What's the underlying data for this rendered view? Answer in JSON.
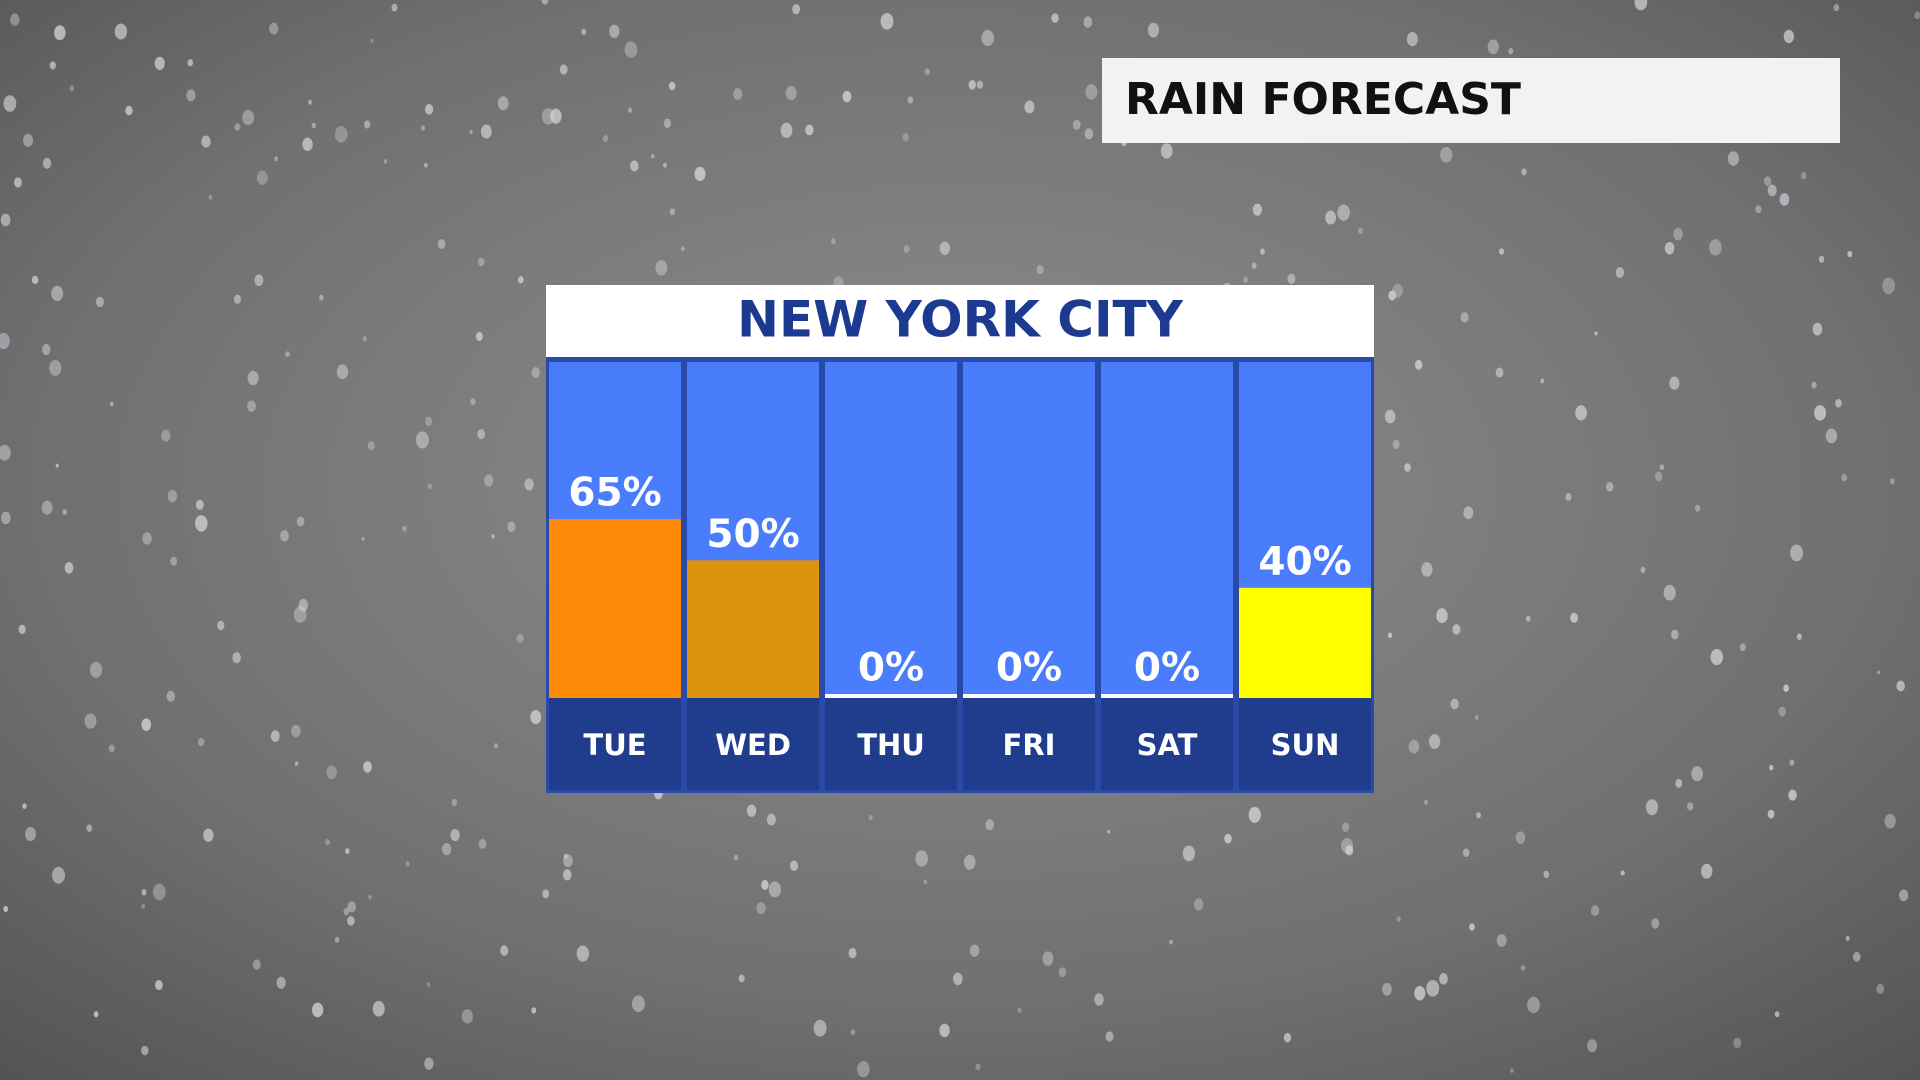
{
  "header": {
    "title": "RAIN FORECAST"
  },
  "chart_data": {
    "type": "bar",
    "title": "NEW YORK CITY",
    "categories": [
      "TUE",
      "WED",
      "THU",
      "FRI",
      "SAT",
      "SUN"
    ],
    "values": [
      65,
      50,
      0,
      0,
      0,
      40
    ],
    "value_labels": [
      "65%",
      "50%",
      "0%",
      "0%",
      "0%",
      "40%"
    ],
    "colors": [
      "#ff8a0a",
      "#dc9410",
      "#ffffff",
      "#ffffff",
      "#ffffff",
      "#ffff00"
    ],
    "ylim": [
      0,
      122
    ]
  }
}
